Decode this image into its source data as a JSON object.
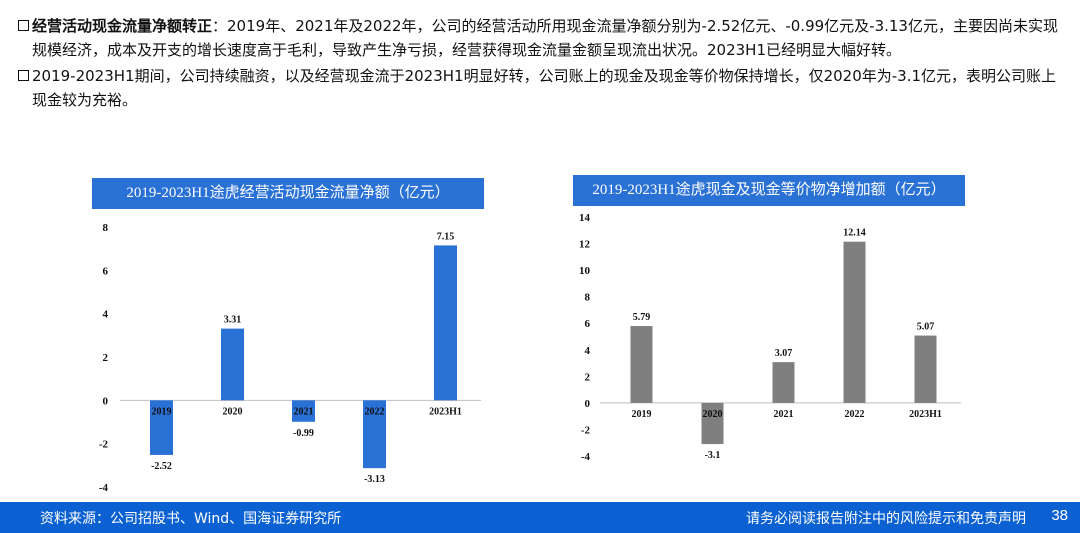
{
  "bullets": [
    {
      "bold": "经营活动现金流量净额转正",
      "text": "：2019年、2021年及2022年，公司的经营活动所用现金流量净额分别为-2.52亿元、-0.99亿元及-3.13亿元，主要因尚未实现规模经济，成本及开支的增长速度高于毛利，导致产生净亏损，经营获得现金流量金额呈现流出状况。2023H1已经明显大幅好转。"
    },
    {
      "bold": "",
      "text": "2019-2023H1期间，公司持续融资，以及经营现金流于2023H1明显好转，公司账上的现金及现金等价物保持增长，仅2020年为-3.1亿元，表明公司账上现金较为充裕。"
    }
  ],
  "footer": {
    "source": "资料来源：公司招股书、Wind、国海证券研究所",
    "disclaimer": "请务必阅读报告附注中的风险提示和免责声明",
    "page_number": "38"
  },
  "chart_data": [
    {
      "type": "bar",
      "title": "2019-2023H1途虎经营活动现金流量净额（亿元）",
      "categories": [
        "2019",
        "2020",
        "2021",
        "2022",
        "2023H1"
      ],
      "values": [
        -2.52,
        3.31,
        -0.99,
        -3.13,
        7.15
      ],
      "data_labels": [
        "-2.52",
        "3.31",
        "-0.99",
        "-3.13",
        "7.15"
      ],
      "ylim": [
        -4,
        8
      ],
      "yticks": [
        -4,
        -2,
        0,
        2,
        4,
        6,
        8
      ],
      "grid": false,
      "color": "#2a71d6"
    },
    {
      "type": "bar",
      "title": "2019-2023H1途虎现金及现金等价物净增加额（亿元）",
      "categories": [
        "2019",
        "2020",
        "2021",
        "2022",
        "2023H1"
      ],
      "values": [
        5.79,
        -3.1,
        3.07,
        12.14,
        5.07
      ],
      "data_labels": [
        "5.79",
        "-3.1",
        "3.07",
        "12.14",
        "5.07"
      ],
      "ylim": [
        -4,
        14
      ],
      "yticks": [
        -4,
        -2,
        0,
        2,
        4,
        6,
        8,
        10,
        12,
        14
      ],
      "grid": false,
      "color": "#7f7f7f"
    }
  ]
}
